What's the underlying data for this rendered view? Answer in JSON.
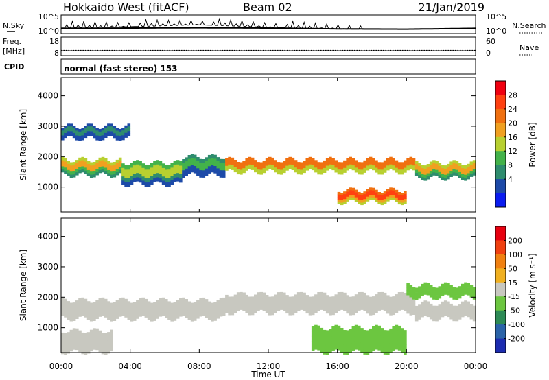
{
  "header": {
    "title": "Hokkaido West (fitACF)",
    "beam": "Beam 02",
    "date": "21/Jan/2019"
  },
  "noise_panel": {
    "left_label": "N.Sky",
    "right_label": "N.Search",
    "y_ticks": [
      "10^5",
      "10^0"
    ]
  },
  "freq_panel": {
    "left_label_1": "Freq.",
    "left_label_2": "[MHz]",
    "right_label": "Nave",
    "left_ticks": [
      "18",
      "8"
    ],
    "right_ticks": [
      "60",
      "0"
    ]
  },
  "cpid": {
    "label": "CPID",
    "text": "normal (fast stereo) 153"
  },
  "x_axis": {
    "label": "Time UT",
    "ticks": [
      "00:00",
      "04:00",
      "08:00",
      "12:00",
      "16:00",
      "20:00",
      "00:00"
    ]
  },
  "power_panel": {
    "ylabel": "Slant Range [km]",
    "y_ticks": [
      "4000",
      "3000",
      "2000",
      "1000"
    ],
    "colorbar_label": "Power [dB]",
    "colorbar_ticks": [
      "28",
      "24",
      "20",
      "16",
      "12",
      "8",
      "4"
    ],
    "colors": [
      "#0a1cf0",
      "#1d4aa8",
      "#2e8c6e",
      "#43b24a",
      "#b8d030",
      "#f0a020",
      "#f07010",
      "#ff4010",
      "#f00010"
    ]
  },
  "velocity_panel": {
    "ylabel": "Slant Range [km]",
    "y_ticks": [
      "4000",
      "3000",
      "2000",
      "1000"
    ],
    "colorbar_label": "Velocity [m s⁻¹]",
    "colorbar_ticks": [
      "200",
      "100",
      "50",
      "15",
      "-15",
      "-50",
      "-100",
      "-200"
    ],
    "colors": [
      "#1c2cb0",
      "#2a63a8",
      "#2d8a55",
      "#6cc640",
      "#c8c8c0",
      "#f0b020",
      "#f08010",
      "#f04010",
      "#e80010"
    ]
  },
  "chart_data": [
    {
      "type": "line",
      "title": "N.Sky / N.Search",
      "xlabel": "",
      "ylabel": "",
      "x": [
        "00:00",
        "04:00",
        "08:00",
        "12:00",
        "16:00",
        "20:00",
        "00:00"
      ],
      "series": [
        {
          "name": "N.Sky",
          "values": [
            1.0,
            1.5,
            2.2,
            1.3,
            0.6,
            0.5,
            1.0
          ]
        },
        {
          "name": "N.Search",
          "values": [
            0.9,
            1.0,
            1.1,
            1.0,
            0.7,
            0.6,
            0.9
          ]
        }
      ],
      "ylim_label": [
        "10^0",
        "10^5"
      ]
    },
    {
      "type": "line",
      "title": "Freq. / Nave",
      "x": [
        "00:00",
        "04:00",
        "08:00",
        "12:00",
        "16:00",
        "20:00",
        "00:00"
      ],
      "series": [
        {
          "name": "Freq. [MHz]",
          "values": [
            10.5,
            10.5,
            10.5,
            10.5,
            10.5,
            10.5,
            10.5
          ]
        },
        {
          "name": "Nave",
          "values": [
            17,
            17,
            17,
            17,
            17,
            17,
            17
          ]
        }
      ],
      "ylim_freq": [
        8,
        18
      ],
      "ylim_nave": [
        0,
        60
      ]
    },
    {
      "type": "heatmap",
      "title": "Power [dB]",
      "xlabel": "Time UT",
      "ylabel": "Slant Range [km]",
      "xlim_hours": [
        0,
        24
      ],
      "ylim": [
        180,
        4600
      ],
      "zlim": [
        0,
        30
      ],
      "bands": [
        {
          "start": 0,
          "end": 3.5,
          "range_low": 1400,
          "range_high": 1900,
          "power": 18
        },
        {
          "start": 3.5,
          "end": 7,
          "range_low": 1100,
          "range_high": 1800,
          "power": 14
        },
        {
          "start": 7,
          "end": 9.5,
          "range_low": 1400,
          "range_high": 2000,
          "power": 10
        },
        {
          "start": 9.5,
          "end": 20.5,
          "range_low": 1500,
          "range_high": 1900,
          "power": 24
        },
        {
          "start": 20.5,
          "end": 24,
          "range_low": 1300,
          "range_high": 1800,
          "power": 18
        },
        {
          "start": 16,
          "end": 20,
          "range_low": 500,
          "range_high": 900,
          "power": 26
        },
        {
          "start": 0,
          "end": 4,
          "range_low": 2600,
          "range_high": 3000,
          "power": 6
        }
      ]
    },
    {
      "type": "heatmap",
      "title": "Velocity [m s^-1]",
      "xlabel": "Time UT",
      "ylabel": "Slant Range [km]",
      "xlim_hours": [
        0,
        24
      ],
      "ylim": [
        180,
        4600
      ],
      "zlim": [
        -200,
        200
      ],
      "bands": [
        {
          "start": 0,
          "end": 9.5,
          "range_low": 1300,
          "range_high": 1900,
          "velocity": 0
        },
        {
          "start": 9.5,
          "end": 20.5,
          "range_low": 1500,
          "range_high": 2100,
          "velocity": 0
        },
        {
          "start": 20.5,
          "end": 24,
          "range_low": 1300,
          "range_high": 1800,
          "velocity": 0
        },
        {
          "start": 14.5,
          "end": 20,
          "range_low": 200,
          "range_high": 1000,
          "velocity": -60
        },
        {
          "start": 20,
          "end": 24,
          "range_low": 2000,
          "range_high": 2400,
          "velocity": -60
        },
        {
          "start": 0,
          "end": 3,
          "range_low": 200,
          "range_high": 900,
          "velocity": 0
        }
      ]
    }
  ]
}
